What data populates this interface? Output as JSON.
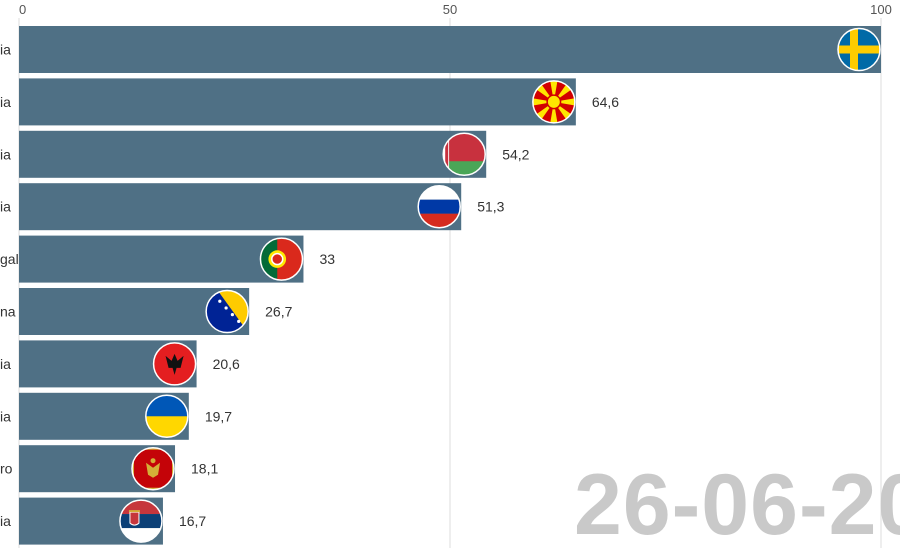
{
  "chart_data": {
    "type": "bar",
    "orientation": "horizontal",
    "categories": [
      "…ia",
      "…ia",
      "…ia",
      "…ia",
      "…gal",
      "…na",
      "…ia",
      "…ia",
      "…ro",
      "…ia"
    ],
    "category_labels_visible": [
      "ia",
      "ia",
      "ia",
      "ia",
      "gal",
      "na",
      "ia",
      "ia",
      "ro",
      "ia"
    ],
    "values": [
      100,
      64.6,
      54.2,
      51.3,
      33,
      26.7,
      20.6,
      19.7,
      18.1,
      16.7
    ],
    "value_labels": [
      "",
      "64,6",
      "54,2",
      "51,3",
      "33",
      "26,7",
      "20,6",
      "19,7",
      "18,1",
      "16,7"
    ],
    "flags": [
      "sweden-flag",
      "north-macedonia-flag",
      "belarus-flag",
      "russia-flag",
      "portugal-flag",
      "bosnia-flag",
      "albania-flag",
      "ukraine-flag",
      "montenegro-flag",
      "serbia-flag"
    ],
    "x_ticks": [
      0,
      50,
      100
    ],
    "x_tick_labels": [
      "0",
      "50",
      "100"
    ],
    "xlim": [
      0,
      100
    ],
    "grid": true,
    "bar_color": "#4f7085",
    "title": "",
    "xlabel": "",
    "ylabel": ""
  },
  "date_stamp": "26-06-20"
}
